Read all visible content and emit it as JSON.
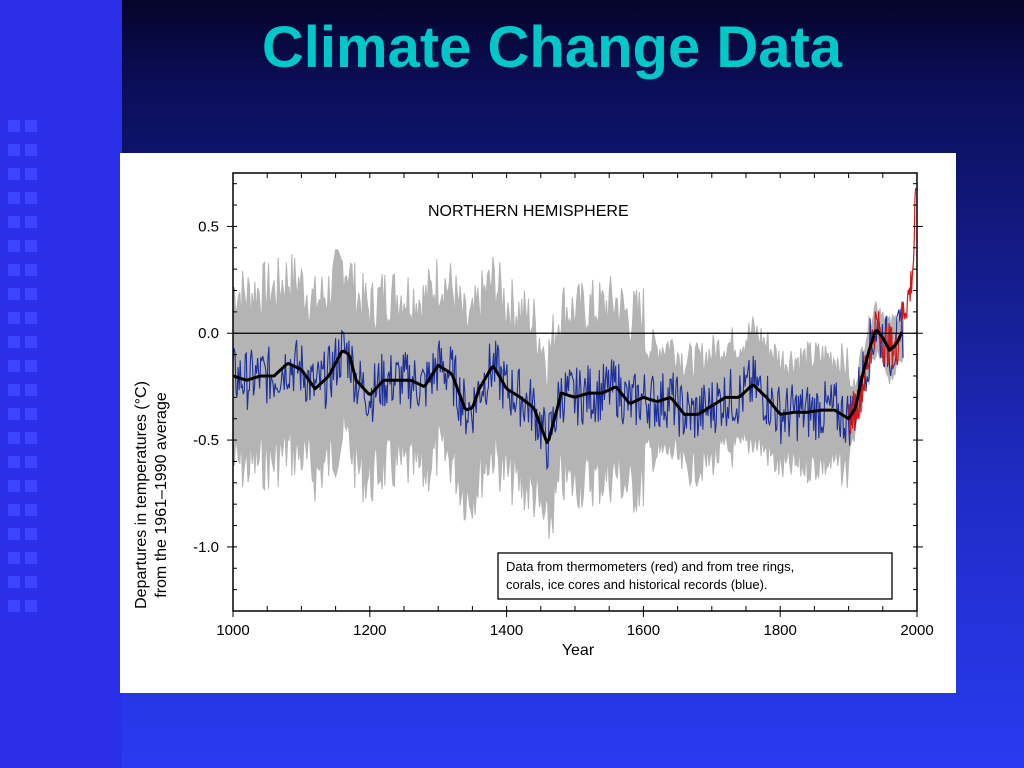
{
  "slide": {
    "title": "Climate Change Data",
    "colors": {
      "title": "#00c8c8",
      "background_top": "#04042a",
      "background_bottom": "#2a3af0",
      "strip": "#2b30e8"
    }
  },
  "chart_data": {
    "type": "line",
    "title": "NORTHERN HEMISPHERE",
    "xlabel": "Year",
    "ylabel_line1": "Departures in temperatures (°C)",
    "ylabel_line2": "from the 1961–1990 average",
    "xlim": [
      1000,
      2000
    ],
    "ylim": [
      -1.3,
      0.75
    ],
    "x_ticks": [
      1000,
      1200,
      1400,
      1600,
      1800,
      2000
    ],
    "x_tick_labels": [
      "1000",
      "1200",
      "1400",
      "1600",
      "1800",
      "2000"
    ],
    "y_ticks": [
      0.5,
      0.0,
      -0.5,
      -1.0
    ],
    "y_tick_labels": [
      "0.5",
      "0.0",
      "-0.5",
      "-1.0"
    ],
    "reference_line": 0.0,
    "legend_text_line1": "Data from thermometers (red) and from tree rings,",
    "legend_text_line2": "corals, ice cores and historical records (blue).",
    "legend_placement": "bottom-right",
    "colors": {
      "reconstruction": "#1c2f9a",
      "smoothed": "#000000",
      "instrumental": "#cc1a1a",
      "uncertainty": "#b4b4b4"
    },
    "smoothed": {
      "x": [
        1000,
        1020,
        1040,
        1060,
        1080,
        1100,
        1120,
        1140,
        1160,
        1170,
        1180,
        1200,
        1220,
        1240,
        1260,
        1280,
        1300,
        1320,
        1340,
        1350,
        1360,
        1380,
        1400,
        1420,
        1440,
        1460,
        1480,
        1500,
        1520,
        1540,
        1560,
        1580,
        1600,
        1620,
        1640,
        1660,
        1680,
        1700,
        1720,
        1740,
        1760,
        1780,
        1800,
        1820,
        1840,
        1860,
        1880,
        1900,
        1910,
        1920,
        1930,
        1940,
        1950,
        1960,
        1970,
        1980
      ],
      "y": [
        -0.2,
        -0.22,
        -0.2,
        -0.2,
        -0.14,
        -0.17,
        -0.26,
        -0.2,
        -0.08,
        -0.1,
        -0.22,
        -0.29,
        -0.22,
        -0.22,
        -0.22,
        -0.25,
        -0.15,
        -0.19,
        -0.36,
        -0.35,
        -0.26,
        -0.15,
        -0.26,
        -0.3,
        -0.35,
        -0.52,
        -0.28,
        -0.3,
        -0.28,
        -0.28,
        -0.25,
        -0.33,
        -0.3,
        -0.32,
        -0.3,
        -0.38,
        -0.38,
        -0.34,
        -0.3,
        -0.3,
        -0.24,
        -0.3,
        -0.38,
        -0.37,
        -0.37,
        -0.36,
        -0.36,
        -0.4,
        -0.35,
        -0.2,
        -0.08,
        0.02,
        -0.02,
        -0.08,
        -0.05,
        0.02
      ]
    },
    "uncertainty_halfwidth": [
      {
        "from": 1000,
        "to": 1600,
        "value": 0.4
      },
      {
        "from": 1600,
        "to": 1900,
        "value": 0.25
      },
      {
        "from": 1900,
        "to": 1980,
        "value": 0.12
      }
    ],
    "instrumental": {
      "x": [
        1900,
        1910,
        1920,
        1930,
        1940,
        1950,
        1960,
        1970,
        1980,
        1990,
        1995,
        1998
      ],
      "y": [
        -0.4,
        -0.35,
        -0.25,
        -0.1,
        0.05,
        -0.05,
        -0.05,
        -0.08,
        0.1,
        0.2,
        0.35,
        0.68
      ]
    }
  }
}
